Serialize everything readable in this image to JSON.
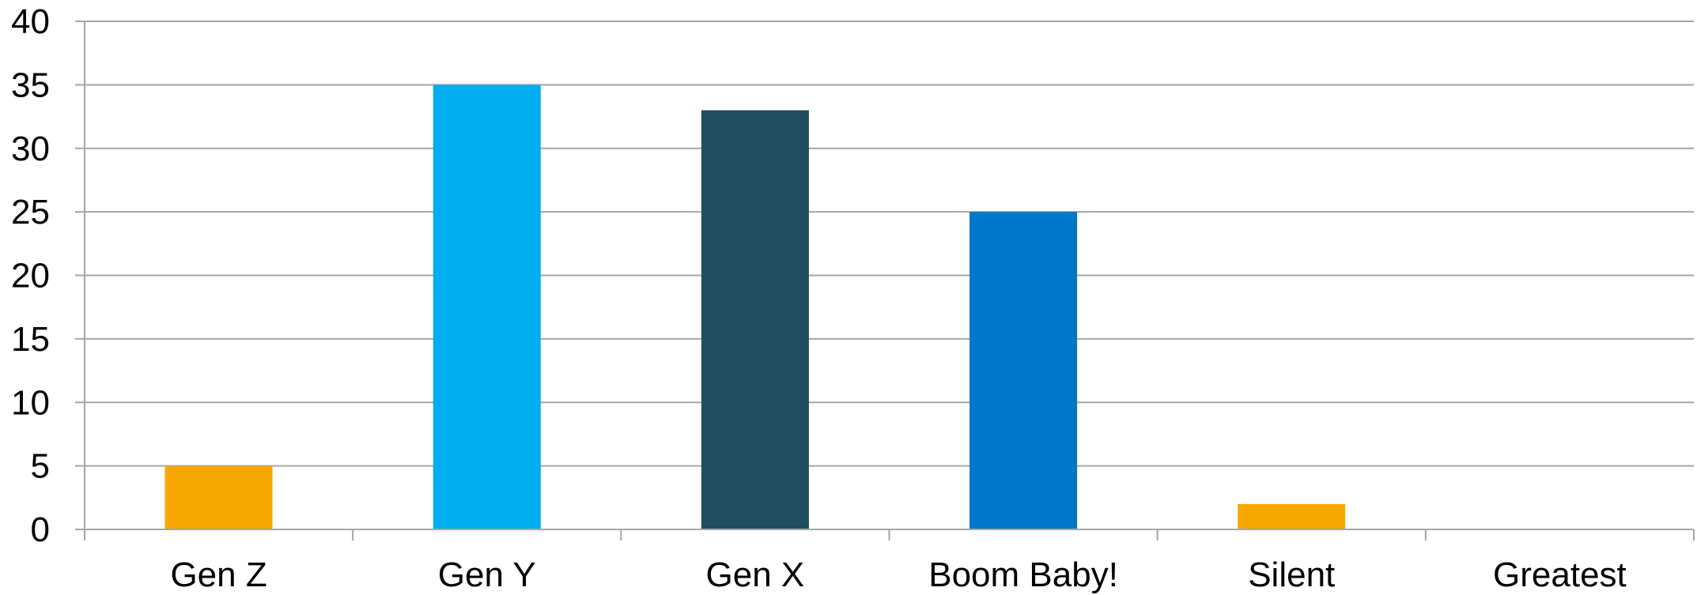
{
  "chart_data": {
    "type": "bar",
    "categories": [
      "Gen Z",
      "Gen Y",
      "Gen X",
      "Boom Baby!",
      "Silent",
      "Greatest"
    ],
    "values": [
      5,
      35,
      33,
      25,
      2,
      0
    ],
    "bar_colors": [
      "#F7A800",
      "#00ADEE",
      "#1F4E5F",
      "#0077C8",
      "#F7A800",
      "#F7A800"
    ],
    "ylim": [
      0,
      40
    ],
    "y_ticks": [
      0,
      5,
      10,
      15,
      20,
      25,
      30,
      35,
      40
    ],
    "grid": true,
    "grid_color": "#A6A6A6",
    "title": "",
    "xlabel": "",
    "ylabel": "",
    "legend": "none"
  }
}
